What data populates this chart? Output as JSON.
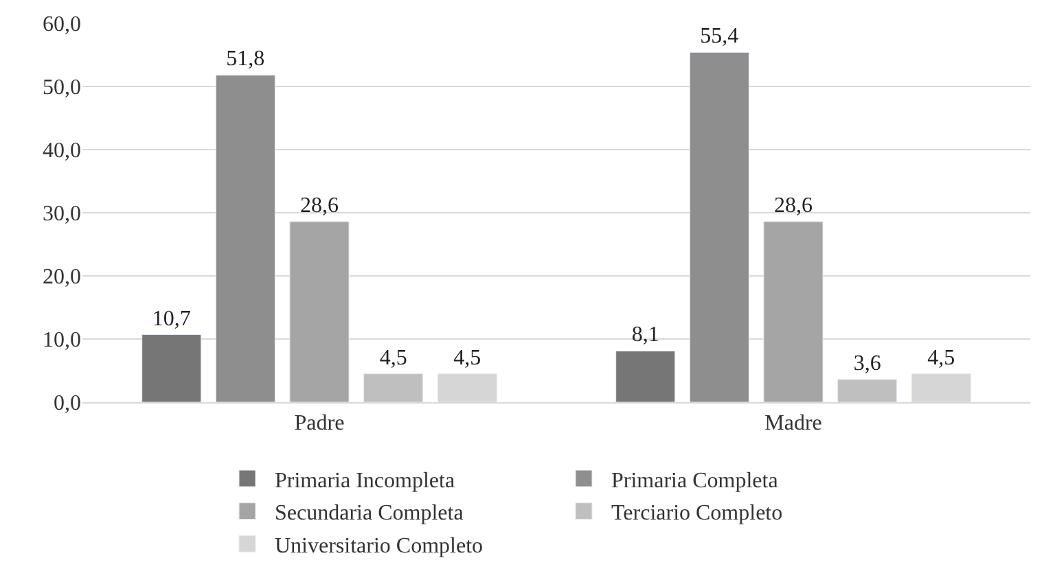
{
  "chart_data": {
    "type": "bar",
    "categories": [
      "Padre",
      "Madre"
    ],
    "series": [
      {
        "name": "Primaria Incompleta",
        "color": "#767676",
        "values": [
          10.7,
          8.1
        ],
        "value_labels": [
          "10,7",
          "8,1"
        ]
      },
      {
        "name": "Primaria Completa",
        "color": "#8e8e8e",
        "values": [
          51.8,
          55.4
        ],
        "value_labels": [
          "51,8",
          "55,4"
        ]
      },
      {
        "name": "Secundaria Completa",
        "color": "#a5a5a5",
        "values": [
          28.6,
          28.6
        ],
        "value_labels": [
          "28,6",
          "28,6"
        ]
      },
      {
        "name": "Terciario Completo",
        "color": "#bfbfbf",
        "values": [
          4.5,
          3.6
        ],
        "value_labels": [
          "4,5",
          "3,6"
        ]
      },
      {
        "name": "Universitario Completo",
        "color": "#d6d6d6",
        "values": [
          4.5,
          4.5
        ],
        "value_labels": [
          "4,5",
          "4,5"
        ]
      }
    ],
    "ylim": [
      0,
      60
    ],
    "yticks": [
      {
        "value": 0,
        "label": "0,0"
      },
      {
        "value": 10,
        "label": "10,0"
      },
      {
        "value": 20,
        "label": "20,0"
      },
      {
        "value": 30,
        "label": "30,0"
      },
      {
        "value": 40,
        "label": "40,0"
      },
      {
        "value": 50,
        "label": "50,0"
      },
      {
        "value": 60,
        "label": "60,0"
      }
    ],
    "grid": "y",
    "legend": "bottom"
  }
}
